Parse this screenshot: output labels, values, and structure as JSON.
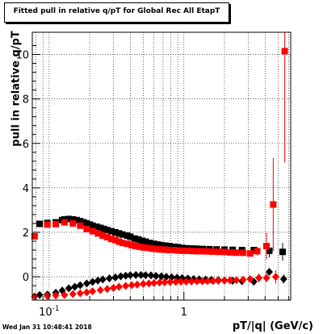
{
  "title": "Fitted pull in relative q/pT for Global Rec All EtapT",
  "timestamp": "Wed Jan 31 10:48:41 2018",
  "chart_data": {
    "type": "scatter",
    "title": "Fitted pull in relative q/pT for Global Rec All EtapT",
    "xlabel": "pT/|q| (GeV/c)",
    "ylabel": "pull in relative q/pT",
    "xscale": "log",
    "xlim": [
      0.075,
      6.2
    ],
    "ylim": [
      -1.05,
      11.0
    ],
    "x_ticklabels": [
      {
        "x": 0.1,
        "text": "10",
        "sup": "-1"
      },
      {
        "x": 1,
        "text": "1"
      }
    ],
    "y_ticks": [
      0,
      2,
      4,
      6,
      8,
      10
    ],
    "grid": true,
    "series": [
      {
        "color": "#000000",
        "marker": "square",
        "role": "width",
        "x": [
          0.085,
          0.097,
          0.112,
          0.125,
          0.13,
          0.14,
          0.15,
          0.16,
          0.17,
          0.18,
          0.19,
          0.2,
          0.21,
          0.225,
          0.24,
          0.255,
          0.27,
          0.29,
          0.31,
          0.33,
          0.35,
          0.38,
          0.4,
          0.43,
          0.46,
          0.49,
          0.52,
          0.56,
          0.6,
          0.64,
          0.68,
          0.73,
          0.78,
          0.84,
          0.9,
          0.97,
          1.05,
          1.15,
          1.25,
          1.38,
          1.55,
          1.75,
          2.0,
          2.3,
          2.7,
          3.3,
          4.3,
          5.4
        ],
        "y": [
          2.38,
          2.42,
          2.45,
          2.55,
          2.58,
          2.6,
          2.58,
          2.55,
          2.5,
          2.45,
          2.4,
          2.35,
          2.3,
          2.25,
          2.2,
          2.15,
          2.1,
          2.05,
          2.0,
          1.95,
          1.9,
          1.85,
          1.8,
          1.72,
          1.68,
          1.62,
          1.58,
          1.52,
          1.48,
          1.45,
          1.42,
          1.4,
          1.38,
          1.35,
          1.33,
          1.3,
          1.28,
          1.27,
          1.26,
          1.25,
          1.24,
          1.23,
          1.22,
          1.21,
          1.2,
          1.2,
          1.17,
          1.12
        ],
        "yerr": [
          0.05,
          0.05,
          0.05,
          0.05,
          0.05,
          0.05,
          0.05,
          0.05,
          0.05,
          0.05,
          0.05,
          0.05,
          0.05,
          0.05,
          0.05,
          0.05,
          0.05,
          0.05,
          0.05,
          0.05,
          0.05,
          0.05,
          0.05,
          0.05,
          0.05,
          0.05,
          0.05,
          0.05,
          0.05,
          0.05,
          0.05,
          0.05,
          0.05,
          0.05,
          0.05,
          0.05,
          0.06,
          0.06,
          0.06,
          0.06,
          0.06,
          0.07,
          0.07,
          0.08,
          0.1,
          0.15,
          0.3,
          0.4
        ]
      },
      {
        "color": "#ff0000",
        "marker": "square",
        "role": "width",
        "x": [
          0.078,
          0.097,
          0.112,
          0.13,
          0.15,
          0.17,
          0.19,
          0.21,
          0.23,
          0.25,
          0.27,
          0.29,
          0.31,
          0.33,
          0.35,
          0.38,
          0.41,
          0.44,
          0.47,
          0.5,
          0.54,
          0.58,
          0.62,
          0.67,
          0.72,
          0.78,
          0.84,
          0.91,
          0.98,
          1.06,
          1.15,
          1.25,
          1.37,
          1.5,
          1.65,
          1.82,
          2.0,
          2.2,
          2.45,
          2.75,
          3.1,
          3.5,
          4.1,
          4.6,
          5.6
        ],
        "y": [
          1.82,
          2.35,
          2.37,
          2.45,
          2.4,
          2.3,
          2.15,
          2.05,
          1.95,
          1.85,
          1.78,
          1.7,
          1.65,
          1.58,
          1.52,
          1.48,
          1.42,
          1.38,
          1.35,
          1.32,
          1.3,
          1.27,
          1.25,
          1.23,
          1.22,
          1.2,
          1.2,
          1.18,
          1.17,
          1.17,
          1.16,
          1.15,
          1.15,
          1.14,
          1.13,
          1.12,
          1.12,
          1.1,
          1.08,
          1.08,
          1.05,
          1.15,
          1.38,
          3.25,
          10.15
        ],
        "yerr": [
          0.12,
          0.1,
          0.08,
          0.06,
          0.05,
          0.05,
          0.05,
          0.05,
          0.05,
          0.05,
          0.05,
          0.05,
          0.05,
          0.05,
          0.05,
          0.05,
          0.05,
          0.05,
          0.05,
          0.05,
          0.05,
          0.05,
          0.05,
          0.05,
          0.05,
          0.05,
          0.05,
          0.05,
          0.05,
          0.05,
          0.05,
          0.05,
          0.05,
          0.06,
          0.06,
          0.06,
          0.07,
          0.07,
          0.08,
          0.1,
          0.12,
          0.2,
          0.6,
          2.1,
          5.0
        ]
      },
      {
        "color": "#000000",
        "marker": "diamond",
        "role": "mean",
        "x": [
          0.085,
          0.097,
          0.112,
          0.125,
          0.14,
          0.155,
          0.17,
          0.19,
          0.21,
          0.23,
          0.25,
          0.28,
          0.31,
          0.34,
          0.37,
          0.4,
          0.44,
          0.48,
          0.52,
          0.57,
          0.62,
          0.68,
          0.74,
          0.81,
          0.89,
          0.97,
          1.07,
          1.18,
          1.3,
          1.45,
          1.6,
          1.8,
          2.0,
          2.3,
          2.7,
          3.3,
          4.3,
          5.5
        ],
        "y": [
          -0.82,
          -0.8,
          -0.72,
          -0.62,
          -0.52,
          -0.45,
          -0.38,
          -0.3,
          -0.23,
          -0.17,
          -0.12,
          -0.07,
          -0.03,
          0.02,
          0.05,
          0.07,
          0.08,
          0.08,
          0.07,
          0.06,
          0.04,
          0.02,
          0.0,
          -0.02,
          -0.04,
          -0.06,
          -0.08,
          -0.1,
          -0.12,
          -0.13,
          -0.14,
          -0.15,
          -0.16,
          -0.18,
          -0.2,
          -0.22,
          0.22,
          -0.1
        ],
        "yerr": [
          0.05,
          0.05,
          0.05,
          0.05,
          0.05,
          0.05,
          0.05,
          0.05,
          0.05,
          0.05,
          0.05,
          0.05,
          0.05,
          0.05,
          0.05,
          0.05,
          0.05,
          0.05,
          0.05,
          0.05,
          0.05,
          0.05,
          0.05,
          0.05,
          0.05,
          0.05,
          0.05,
          0.05,
          0.05,
          0.05,
          0.05,
          0.06,
          0.06,
          0.07,
          0.08,
          0.1,
          0.15,
          0.2
        ]
      },
      {
        "color": "#ff0000",
        "marker": "diamond",
        "role": "mean",
        "x": [
          0.078,
          0.097,
          0.112,
          0.13,
          0.15,
          0.17,
          0.19,
          0.21,
          0.24,
          0.27,
          0.3,
          0.33,
          0.37,
          0.41,
          0.45,
          0.5,
          0.55,
          0.6,
          0.66,
          0.72,
          0.79,
          0.87,
          0.95,
          1.04,
          1.14,
          1.25,
          1.37,
          1.5,
          1.65,
          1.8,
          2.0,
          2.2,
          2.45,
          2.75,
          3.1,
          3.6,
          4.1,
          4.8
        ],
        "y": [
          -0.88,
          -0.86,
          -0.84,
          -0.82,
          -0.78,
          -0.74,
          -0.7,
          -0.65,
          -0.6,
          -0.55,
          -0.5,
          -0.45,
          -0.41,
          -0.38,
          -0.35,
          -0.32,
          -0.3,
          -0.28,
          -0.26,
          -0.25,
          -0.24,
          -0.23,
          -0.22,
          -0.22,
          -0.21,
          -0.2,
          -0.2,
          -0.19,
          -0.19,
          -0.18,
          -0.17,
          -0.16,
          -0.15,
          -0.13,
          -0.1,
          -0.05,
          -0.05,
          0.0
        ],
        "yerr": [
          0.05,
          0.05,
          0.05,
          0.05,
          0.05,
          0.05,
          0.05,
          0.05,
          0.05,
          0.05,
          0.05,
          0.05,
          0.05,
          0.05,
          0.05,
          0.05,
          0.05,
          0.05,
          0.05,
          0.05,
          0.05,
          0.05,
          0.05,
          0.05,
          0.05,
          0.05,
          0.05,
          0.06,
          0.06,
          0.06,
          0.07,
          0.07,
          0.08,
          0.1,
          0.12,
          0.2,
          0.2,
          0.3
        ]
      }
    ]
  }
}
